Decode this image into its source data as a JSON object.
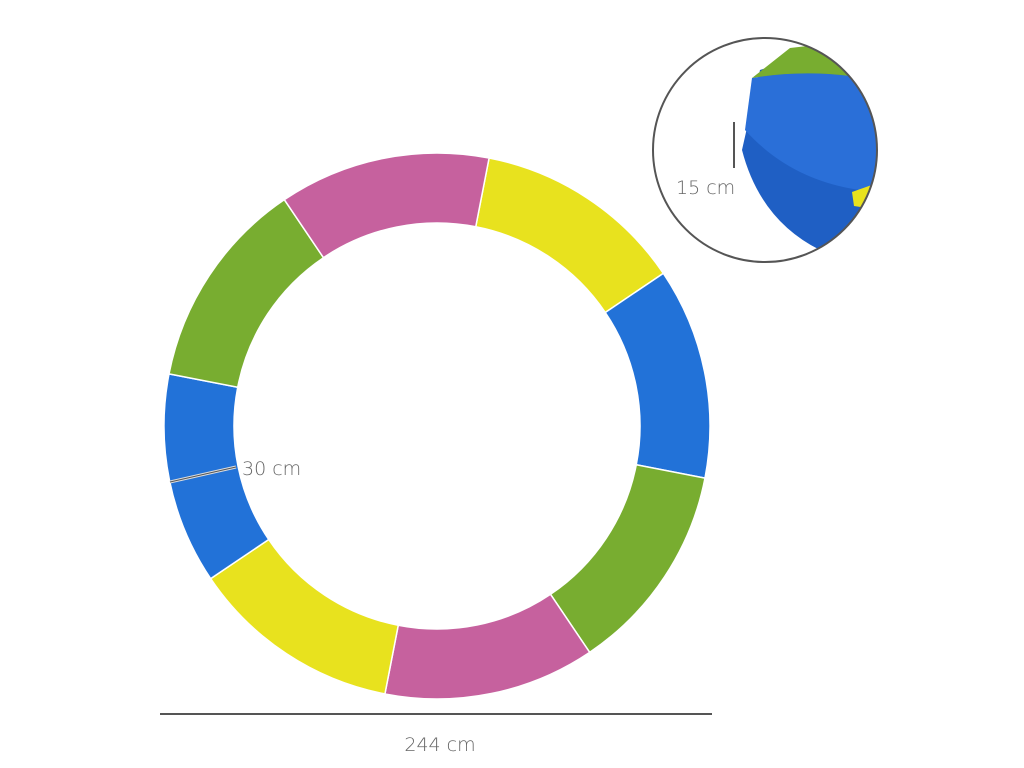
{
  "dimensions": {
    "diameter": "244 cm",
    "width": "30 cm",
    "thickness": "15 cm"
  }
}
